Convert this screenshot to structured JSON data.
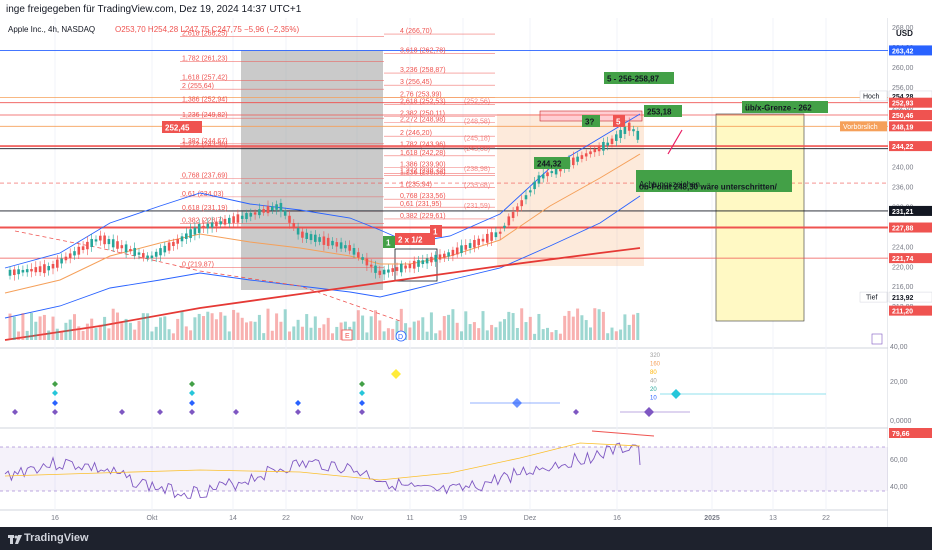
{
  "header": {
    "text": "inge freigegeben für TradingView.com, Dez 19, 2024 14:37 UTC+1",
    "symbol_line": "Apple Inc., 4h, NASDAQ",
    "ohlc": "O253,70 H254,28 L247,75 C247,75 −5,96 (−2,35%)",
    "currency": "USD"
  },
  "colors": {
    "up": "#26a69a",
    "down": "#ef5350",
    "fib": "#ef5350",
    "price_accent": "#2962ff",
    "ma200": "#e53935",
    "bollinger": "#2962ff",
    "rsi": "#7e57c2",
    "cloud_fill": "#f5a05a",
    "green_label": "#43a047"
  },
  "price_axis": {
    "ticks": [
      "268,00",
      "264,00",
      "260,00",
      "256,00",
      "252,00",
      "248,00",
      "244,00",
      "240,00",
      "236,00",
      "232,00",
      "228,00",
      "224,00",
      "220,00",
      "216,00",
      "212,00"
    ],
    "badges": [
      {
        "v": "263,42",
        "c": "#2962ff"
      },
      {
        "v": "254,28",
        "c": "#ffffff"
      },
      {
        "v": "252,93",
        "c": "#ef5350"
      },
      {
        "v": "250,46",
        "c": "#ef5350"
      },
      {
        "v": "248,19",
        "c": "#ef5350"
      },
      {
        "v": "244,22",
        "c": "#ef5350"
      },
      {
        "v": "231,21",
        "c": "#131722"
      },
      {
        "v": "227,88",
        "c": "#ef5350"
      },
      {
        "v": "221,74",
        "c": "#ef5350"
      },
      {
        "v": "213,92",
        "c": "#ffffff"
      },
      {
        "v": "211,20",
        "c": "#ef5350"
      }
    ],
    "labels": {
      "hoch": "Hoch",
      "tief": "Tief",
      "vorboers": "Vorbörslich"
    }
  },
  "fib_left": [
    "2,618 (266,25)",
    "1,782 (261,23)",
    "1,618 (257,42)",
    "2 (255,64)",
    "1,386 (252,94)",
    "1,236 (249,82)",
    "1,382 (244,67)",
    "1,272 (243,98)",
    "0,768 (237,69)",
    "0,61 (234,03)",
    "0,618 (231,19)",
    "0,382 (228,7)",
    "0 (219,87)"
  ],
  "fib_mid": [
    "4,4223 (271,63)",
    "4 (266,70)",
    "3,618 (262,78)",
    "3,236 (258,87)",
    "3 (256,45)",
    "2,76 (253,99)",
    "2,618 (252,53)",
    "2,382 (250,11)",
    "2,272 (248,98)",
    "2 (246,20)",
    "1,782 (243,96)",
    "1,618 (242,28)",
    "1,386 (239,90)",
    "1,272 (238,73)",
    "1,236 (238,36)",
    "1 (235,94)",
    "0,768 (233,56)",
    "0,61 (231,95)",
    "0,382 (229,61)"
  ],
  "fib_right": [
    "(252,56)",
    "(248,58)",
    "(245,18)",
    "(243,08)",
    "(238,98)",
    "(235,68)",
    "(231,59)"
  ],
  "annotations": {
    "wave5": "5 - 256-258,87",
    "uebx": "üb/x-Grenze - 262",
    "obpoint1": "ob-Point 248,30 wäre unterschritten/",
    "obpoint2": "Achtungszeichen",
    "price_252": "252,45",
    "price_253": "253,18",
    "price_244": "244,32",
    "w1": "1",
    "w2": "2 x 1/2",
    "w1b": "1",
    "w3": "3?",
    "w5": "5"
  },
  "time_axis": [
    "16",
    "Okt",
    "14",
    "22",
    "Nov",
    "11",
    "19",
    "Dez",
    "16",
    "2025",
    "13",
    "22"
  ],
  "indicator_axis": [
    "40,00",
    "20,00",
    "0,0000"
  ],
  "indicator_small_labels": [
    "320",
    "160",
    "80",
    "40",
    "20",
    "10"
  ],
  "rsi": {
    "value": "79,66",
    "ticks": [
      "60,00",
      "40,00"
    ]
  },
  "footer": {
    "brand": "TradingView"
  }
}
